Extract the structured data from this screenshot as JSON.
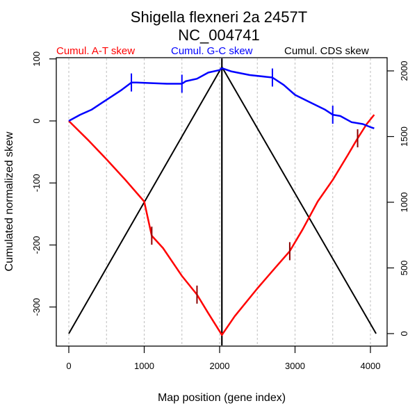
{
  "chart_data": {
    "type": "line",
    "title": "Shigella flexneri 2a 2457T",
    "subtitle": "NC_004741",
    "xlabel": "Map position (gene index)",
    "ylabel": "Cumulated normalized skew",
    "xlim": [
      0,
      4200
    ],
    "ylim": [
      -360,
      100
    ],
    "y2lim": [
      0,
      2100
    ],
    "xticks": [
      0,
      1000,
      2000,
      3000,
      4000
    ],
    "xtick_labels": [
      "0",
      "1000",
      "2000",
      "3000",
      "4000"
    ],
    "yticks": [
      100,
      0,
      -100,
      -200,
      -300
    ],
    "ytick_labels": [
      "100",
      "0",
      "-100",
      "-200",
      "-300"
    ],
    "y2ticks": [
      2000,
      1500,
      1000,
      500,
      0
    ],
    "y2tick_labels": [
      "2000",
      "1500",
      "1000",
      "500",
      "0"
    ],
    "grid_x": [
      0,
      500,
      1000,
      1500,
      2000,
      2500,
      3000,
      3500,
      4000
    ],
    "origin_line_x": 2030,
    "legend_placement": "top",
    "series": [
      {
        "name": "Cumul. A-T skew",
        "color": "#ff0000",
        "marker_color": "#8b0000",
        "axis": "left",
        "x": [
          0,
          250,
          500,
          750,
          1000,
          1100,
          1250,
          1500,
          1700,
          1850,
          2030,
          2200,
          2500,
          2750,
          2930,
          3100,
          3300,
          3500,
          3700,
          3830,
          3950,
          4050
        ],
        "y": [
          0,
          -30,
          -62,
          -95,
          -130,
          -185,
          -205,
          -250,
          -280,
          -310,
          -345,
          -315,
          -270,
          -235,
          -210,
          -175,
          -130,
          -95,
          -55,
          -28,
          -5,
          10
        ],
        "markers": [
          {
            "x": 1100,
            "y": -185
          },
          {
            "x": 1700,
            "y": -280
          },
          {
            "x": 2930,
            "y": -210
          },
          {
            "x": 3830,
            "y": -28
          }
        ]
      },
      {
        "name": "Cumul. G-C skew",
        "color": "#0000ff",
        "axis": "left",
        "x": [
          0,
          150,
          300,
          450,
          550,
          700,
          830,
          900,
          1100,
          1300,
          1500,
          1550,
          1700,
          1850,
          2000,
          2030,
          2150,
          2400,
          2700,
          2850,
          3000,
          3200,
          3400,
          3500,
          3600,
          3750,
          3900,
          4000,
          4050
        ],
        "y": [
          0,
          10,
          18,
          30,
          38,
          50,
          62,
          62,
          61,
          60,
          60,
          64,
          68,
          78,
          82,
          85,
          80,
          74,
          70,
          58,
          42,
          30,
          18,
          10,
          8,
          -2,
          -5,
          -10,
          -12
        ],
        "markers": [
          {
            "x": 830,
            "y": 62
          },
          {
            "x": 1500,
            "y": 60
          },
          {
            "x": 2700,
            "y": 70
          },
          {
            "x": 3500,
            "y": 10
          }
        ]
      },
      {
        "name": "Cumul. CDS skew",
        "color": "#000000",
        "axis": "right",
        "x": [
          0,
          2030,
          4075
        ],
        "y": [
          0,
          2030,
          0
        ]
      }
    ]
  }
}
